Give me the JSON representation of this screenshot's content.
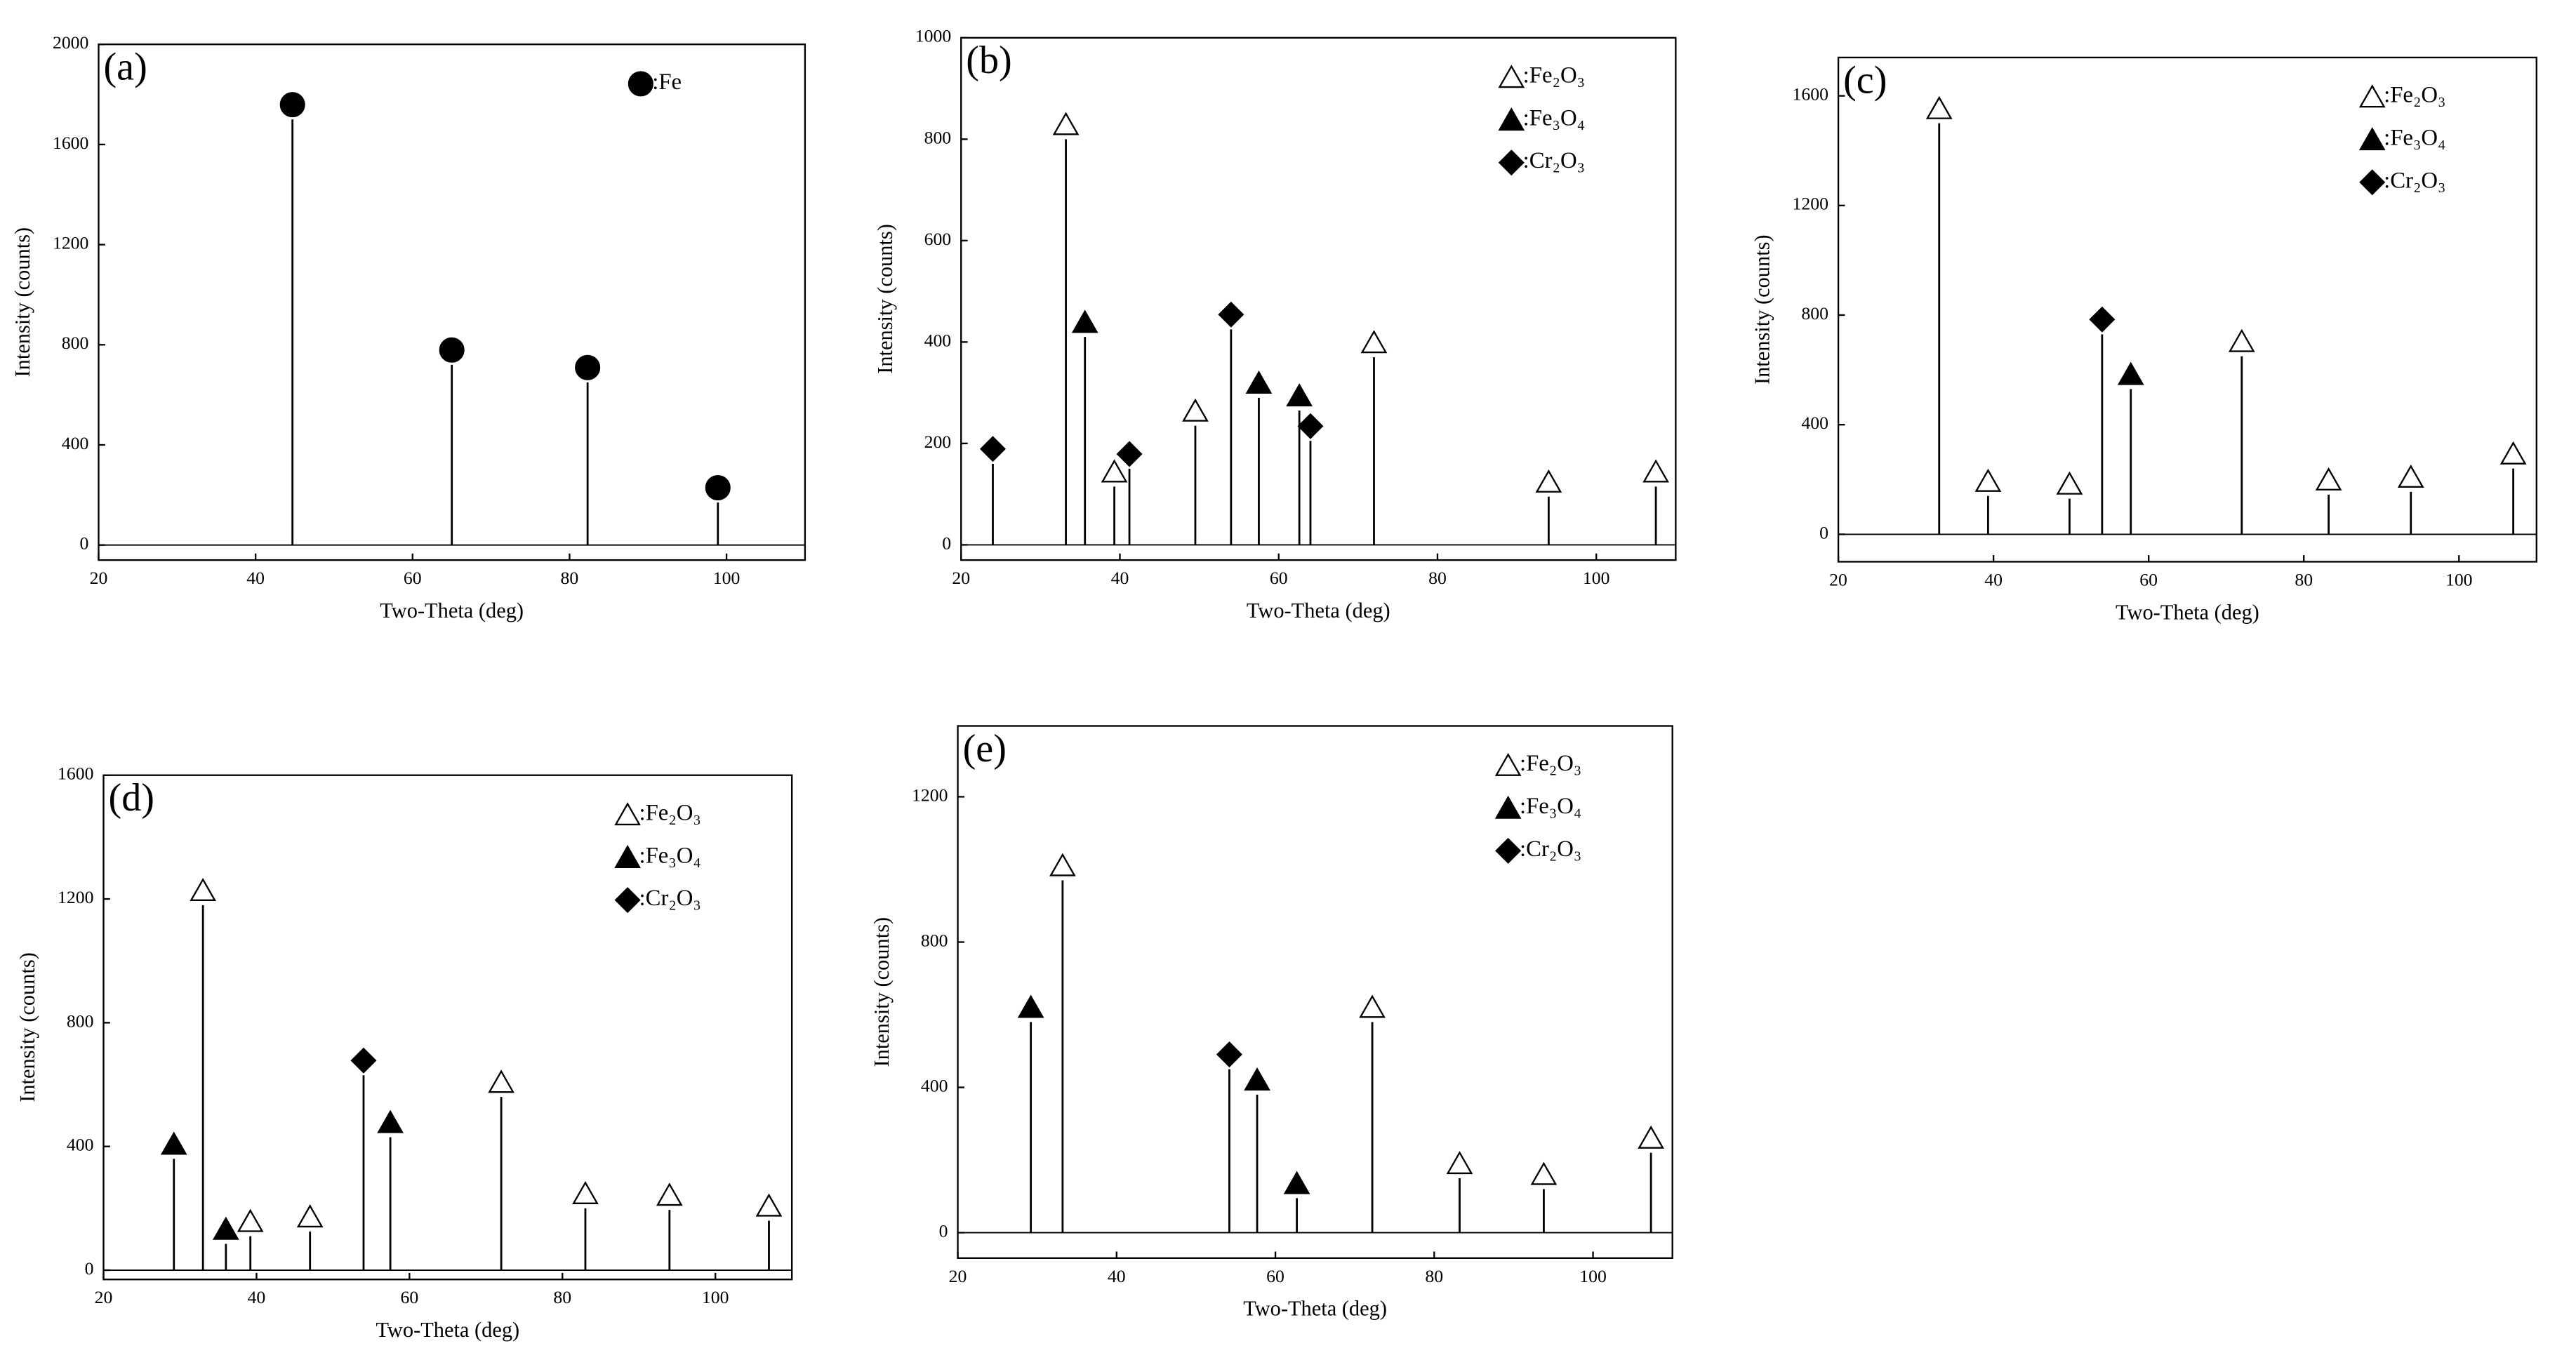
{
  "chart_data": [
    {
      "type": "stem",
      "title": "(a)",
      "xlabel": "Two-Theta (deg)",
      "ylabel": "Intensity (counts)",
      "xlim": [
        20,
        110
      ],
      "xticks": [
        20,
        40,
        60,
        80,
        100
      ],
      "ylim": [
        -60,
        2000
      ],
      "yticks": [
        0,
        400,
        800,
        1200,
        1600,
        2000
      ],
      "series": [
        {
          "name": ":Fe",
          "marker": "circle",
          "color": "#000",
          "x": [
            44.7,
            65,
            82.3,
            98.9
          ],
          "values": [
            1700,
            720,
            650,
            170
          ]
        }
      ]
    },
    {
      "type": "stem",
      "title": "(b)",
      "xlabel": "Two-Theta (deg)",
      "ylabel": "Intensity (counts)",
      "xlim": [
        20,
        110
      ],
      "xticks": [
        20,
        40,
        60,
        80,
        100
      ],
      "ylim": [
        -30,
        1000
      ],
      "yticks": [
        0,
        200,
        400,
        600,
        800,
        1000
      ],
      "series": [
        {
          "name": ":Fe₂O₃",
          "marker": "open-triangle",
          "color": "#000",
          "x": [
            33.2,
            39.3,
            49.5,
            72,
            94,
            107.5
          ],
          "values": [
            800,
            115,
            235,
            370,
            95,
            115
          ]
        },
        {
          "name": ":Fe₃O₄",
          "marker": "triangle",
          "color": "#000",
          "x": [
            35.6,
            57.5,
            62.6
          ],
          "values": [
            410,
            290,
            265
          ]
        },
        {
          "name": ":Cr₂O₃",
          "marker": "diamond",
          "color": "#000",
          "x": [
            24,
            41.2,
            54,
            64
          ],
          "values": [
            160,
            150,
            425,
            205
          ]
        }
      ]
    },
    {
      "type": "stem",
      "title": "(c)",
      "xlabel": "Two-Theta (deg)",
      "ylabel": "Intensity (counts)",
      "xlim": [
        20,
        110
      ],
      "xticks": [
        20,
        40,
        60,
        80,
        100
      ],
      "ylim": [
        -100,
        1740
      ],
      "yticks": [
        0,
        400,
        800,
        1200,
        1600
      ],
      "series": [
        {
          "name": ":Fe₂O₃",
          "marker": "open-triangle",
          "color": "#000",
          "x": [
            33,
            39.3,
            49.8,
            72,
            83.2,
            93.8,
            107
          ],
          "values": [
            1500,
            140,
            130,
            650,
            145,
            155,
            240
          ]
        },
        {
          "name": ":Fe₃O₄",
          "marker": "triangle",
          "color": "#000",
          "x": [
            57.7
          ],
          "values": [
            530
          ]
        },
        {
          "name": ":Cr₂O₃",
          "marker": "diamond",
          "color": "#000",
          "x": [
            54
          ],
          "values": [
            730
          ]
        }
      ]
    },
    {
      "type": "stem",
      "title": "(d)",
      "xlabel": "Two-Theta (deg)",
      "ylabel": "Intensity (counts)",
      "xlim": [
        20,
        110
      ],
      "xticks": [
        20,
        40,
        60,
        80,
        100
      ],
      "ylim": [
        -30,
        1600
      ],
      "yticks": [
        0,
        400,
        800,
        1200,
        1600
      ],
      "series": [
        {
          "name": ":Fe₂O₃",
          "marker": "open-triangle",
          "color": "#000",
          "x": [
            33,
            39.2,
            47,
            72,
            83,
            94,
            107
          ],
          "values": [
            1180,
            110,
            125,
            560,
            200,
            195,
            160
          ]
        },
        {
          "name": ":Fe₃O₄",
          "marker": "triangle",
          "color": "#000",
          "x": [
            29.2,
            36,
            57.5
          ],
          "values": [
            360,
            85,
            430
          ]
        },
        {
          "name": ":Cr₂O₃",
          "marker": "diamond",
          "color": "#000",
          "x": [
            54
          ],
          "values": [
            630
          ]
        }
      ]
    },
    {
      "type": "stem",
      "title": "(e)",
      "xlabel": "Two-Theta (deg)",
      "ylabel": "Intensity (counts)",
      "xlim": [
        20,
        110
      ],
      "xticks": [
        20,
        40,
        60,
        80,
        100
      ],
      "ylim": [
        -70,
        1395
      ],
      "yticks": [
        0,
        400,
        800,
        1200
      ],
      "series": [
        {
          "name": ":Fe₂O₃",
          "marker": "open-triangle",
          "color": "#000",
          "x": [
            33.2,
            72.2,
            83.2,
            93.8,
            107.3
          ],
          "values": [
            970,
            580,
            150,
            120,
            220
          ]
        },
        {
          "name": ":Fe₃O₄",
          "marker": "triangle",
          "color": "#000",
          "x": [
            29.2,
            57.7,
            62.7
          ],
          "values": [
            580,
            380,
            95
          ]
        },
        {
          "name": ":Cr₂O₃",
          "marker": "diamond",
          "color": "#000",
          "x": [
            54.2
          ],
          "values": [
            450
          ]
        }
      ]
    }
  ]
}
